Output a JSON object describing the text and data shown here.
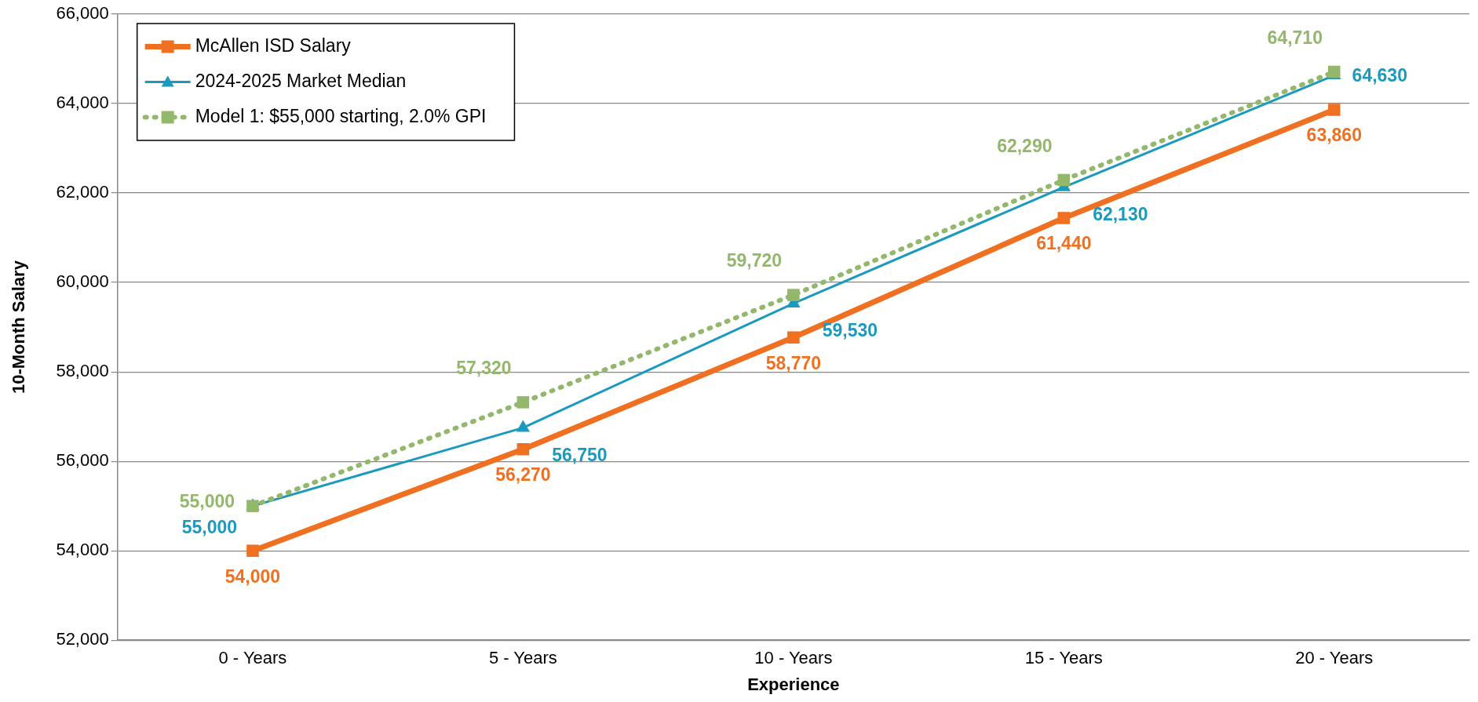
{
  "chart_data": {
    "type": "line",
    "xlabel": "Experience",
    "ylabel": "10-Month Salary",
    "categories": [
      "0 - Years",
      "5 - Years",
      "10 - Years",
      "15 - Years",
      "20 - Years"
    ],
    "series": [
      {
        "name": "McAllen ISD Salary",
        "color": "#f07022",
        "marker": "square",
        "line_style": "solid",
        "values": [
          54000,
          56270,
          58770,
          61440,
          63860
        ],
        "value_labels": [
          "54,000",
          "56,270",
          "58,770",
          "61,440",
          "63,860"
        ]
      },
      {
        "name": "2024-2025 Market Median",
        "color": "#1b9ac0",
        "marker": "triangle",
        "line_style": "solid",
        "values": [
          55000,
          56750,
          59530,
          62130,
          64630
        ],
        "value_labels": [
          "55,000",
          "56,750",
          "59,530",
          "62,130",
          "64,630"
        ]
      },
      {
        "name": "Model 1: $55,000 starting, 2.0% GPI",
        "color": "#93b86c",
        "marker": "square",
        "line_style": "dotted",
        "values": [
          55000,
          57320,
          59720,
          62290,
          64710
        ],
        "value_labels": [
          "55,000",
          "57,320",
          "59,720",
          "62,290",
          "64,710"
        ]
      }
    ],
    "ylim": [
      52000,
      66000
    ],
    "yticks": [
      {
        "value": 52000,
        "label": "52,000"
      },
      {
        "value": 54000,
        "label": "54,000"
      },
      {
        "value": 56000,
        "label": "56,000"
      },
      {
        "value": 58000,
        "label": "58,000"
      },
      {
        "value": 60000,
        "label": "60,000"
      },
      {
        "value": 62000,
        "label": "62,000"
      },
      {
        "value": 64000,
        "label": "64,000"
      },
      {
        "value": 66000,
        "label": "66,000"
      }
    ],
    "grid": "y",
    "legend": "top left"
  }
}
